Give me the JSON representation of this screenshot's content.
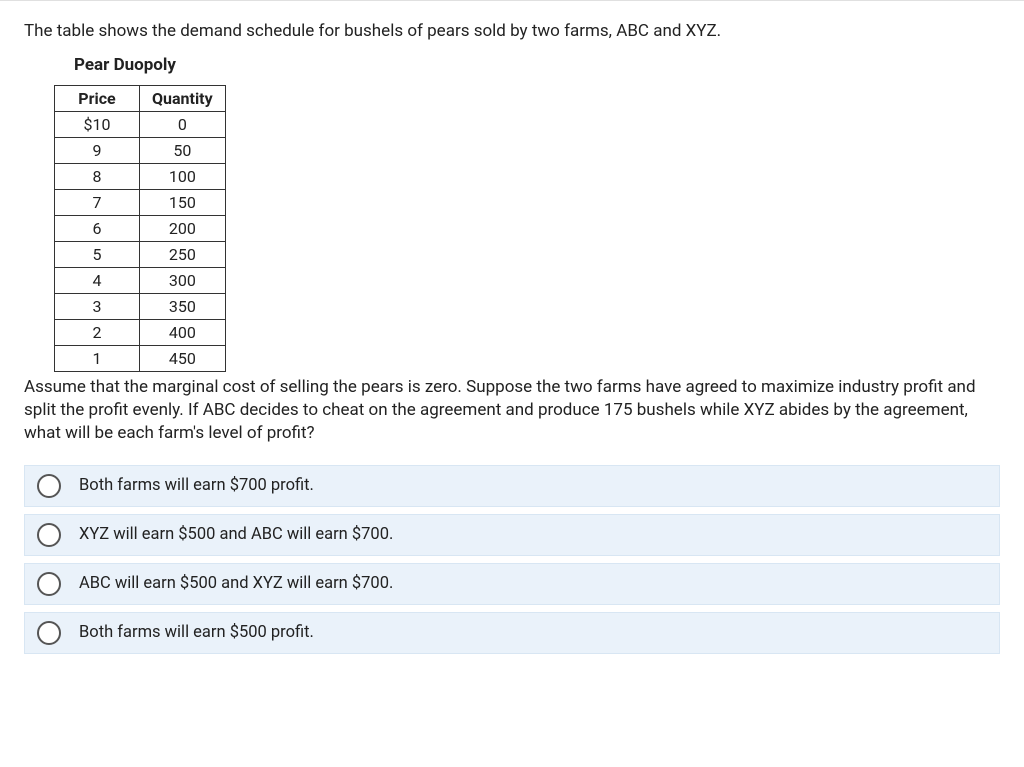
{
  "intro_text": "The table shows the demand schedule for bushels of pears sold by two farms, ABC and XYZ.",
  "table": {
    "title": "Pear Duopoly",
    "columns": [
      "Price",
      "Quantity"
    ],
    "rows": [
      [
        "$10",
        "0"
      ],
      [
        "9",
        "50"
      ],
      [
        "8",
        "100"
      ],
      [
        "7",
        "150"
      ],
      [
        "6",
        "200"
      ],
      [
        "5",
        "250"
      ],
      [
        "4",
        "300"
      ],
      [
        "3",
        "350"
      ],
      [
        "2",
        "400"
      ],
      [
        "1",
        "450"
      ]
    ]
  },
  "followup_text": "Assume that the marginal cost of selling the pears is zero. Suppose the two farms have agreed to maximize industry profit and split the profit evenly. If ABC decides to cheat on the agreement and produce 175 bushels while XYZ abides by the agreement, what will be each farm's level of profit?",
  "options": [
    "Both farms will earn $700 profit.",
    "XYZ will earn $500 and ABC will earn $700.",
    "ABC will earn $500 and XYZ will earn $700.",
    "Both farms will earn $500 profit."
  ],
  "colors": {
    "option_bg": "#eaf2fa",
    "option_border": "#d8e6f3",
    "table_border": "#333333",
    "text": "#222222"
  }
}
